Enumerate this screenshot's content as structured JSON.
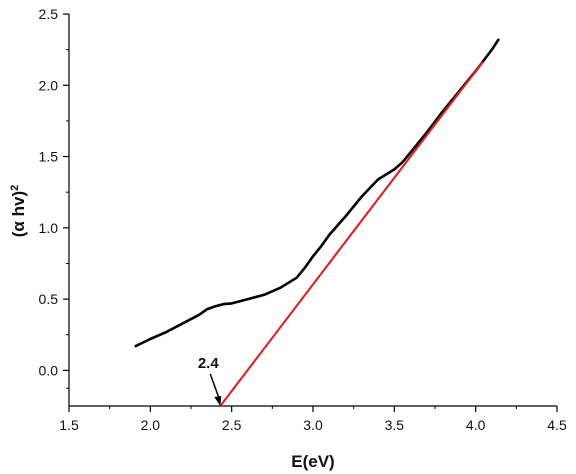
{
  "chart_data": {
    "type": "line",
    "xlabel": "E(eV)",
    "ylabel_main": "(α hv)",
    "ylabel_sup": "2",
    "xlim": [
      1.5,
      4.5
    ],
    "ylim": [
      -0.25,
      2.5
    ],
    "x_ticks": [
      1.5,
      2.0,
      2.5,
      3.0,
      3.5,
      4.0,
      4.5
    ],
    "x_tick_labels": [
      "1.5",
      "2.0",
      "2.5",
      "3.0",
      "3.5",
      "4.0",
      "4.5"
    ],
    "y_ticks": [
      0.0,
      0.5,
      1.0,
      1.5,
      2.0,
      2.5
    ],
    "y_tick_labels": [
      "0.0",
      "0.5",
      "1.0",
      "1.5",
      "2.0",
      "2.5"
    ],
    "grid": false,
    "legend": "none",
    "series": [
      {
        "color": "#000000",
        "x": [
          1.91,
          2.0,
          2.1,
          2.2,
          2.3,
          2.35,
          2.4,
          2.45,
          2.5,
          2.6,
          2.7,
          2.8,
          2.9,
          2.95,
          3.0,
          3.05,
          3.1,
          3.2,
          3.3,
          3.4,
          3.5,
          3.55,
          3.6,
          3.7,
          3.8,
          3.9,
          4.0,
          4.1,
          4.14
        ],
        "y": [
          0.17,
          0.22,
          0.27,
          0.33,
          0.39,
          0.43,
          0.45,
          0.465,
          0.47,
          0.5,
          0.53,
          0.58,
          0.65,
          0.72,
          0.8,
          0.87,
          0.95,
          1.08,
          1.22,
          1.34,
          1.41,
          1.46,
          1.53,
          1.67,
          1.82,
          1.96,
          2.1,
          2.25,
          2.32
        ]
      },
      {
        "color": "#e02020",
        "x": [
          2.43,
          4.04
        ],
        "y": [
          -0.25,
          2.16
        ]
      }
    ],
    "annotations": [
      {
        "text": "2.4",
        "x": 2.43,
        "y": -0.25
      }
    ]
  }
}
